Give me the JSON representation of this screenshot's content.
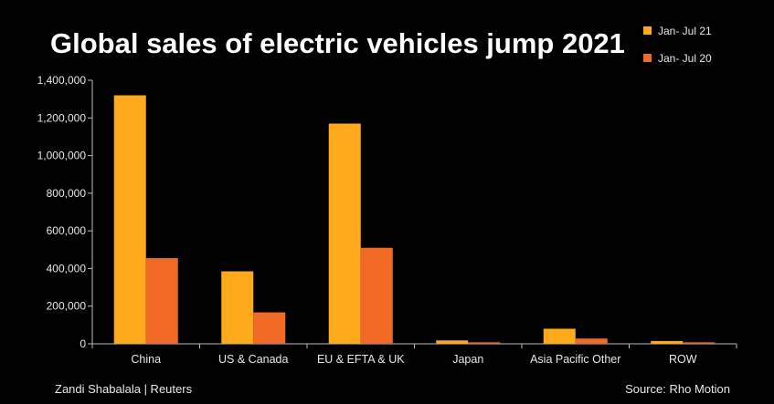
{
  "chart_data": {
    "type": "bar",
    "title": "Global sales of electric vehicles jump 2021",
    "categories": [
      "China",
      "US & Canada",
      "EU & EFTA & UK",
      "Japan",
      "Asia Pacific Other",
      "ROW"
    ],
    "series": [
      {
        "name": "Jan- Jul 21",
        "color": "#FFA91C",
        "values": [
          1320000,
          385000,
          1170000,
          18000,
          80000,
          15000
        ]
      },
      {
        "name": "Jan- Jul 20",
        "color": "#F06A26",
        "values": [
          455000,
          167000,
          510000,
          8000,
          28000,
          8000
        ]
      }
    ],
    "yticks": [
      "0",
      "200,000",
      "400,000",
      "600,000",
      "800,000",
      "1,000,000",
      "1,200,000",
      "1,400,000"
    ],
    "ylim": [
      0,
      1400000
    ],
    "legend_position": "top-right",
    "grid": false
  },
  "footer": {
    "credit": "Zandi Shabalala | Reuters",
    "source": "Source: Rho Motion"
  }
}
